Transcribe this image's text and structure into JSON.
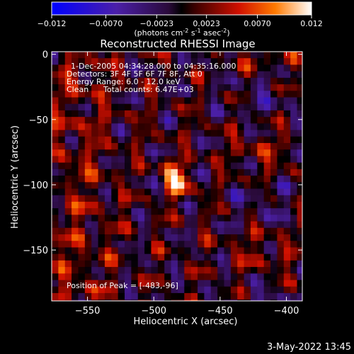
{
  "colorbar": {
    "ticks": [
      "-0.012",
      "-0.0070",
      "-0.0023",
      "0.0023",
      "0.0070",
      "0.012"
    ],
    "tick_values": [
      -0.012,
      -0.007,
      -0.0023,
      0.0023,
      0.007,
      0.012
    ],
    "range": [
      -0.012,
      0.012
    ],
    "unit_parts": [
      "(photons cm",
      "-2",
      " s",
      "-1",
      " asec",
      "-2",
      ")"
    ]
  },
  "info": {
    "time": "1-Dec-2005 04:34:28.000 to 04:35:16.000",
    "detectors": "Detectors: 3F 4F 5F 6F 7F 8F, Att 0",
    "energy": "Energy Range: 6.0 - 12.0 keV",
    "clean": "Clean",
    "counts": "Total counts: 6.47E+03",
    "peak": "Position of Peak = [-483,-96]"
  },
  "footer": {
    "timestamp": "3-May-2022 13:45"
  },
  "chart_data": {
    "type": "heatmap",
    "title": "Reconstructed RHESSI Image",
    "xlabel": "Heliocentric X (arcsec)",
    "ylabel": "Heliocentric Y (arcsec)",
    "xlim": [
      -577,
      -388
    ],
    "ylim": [
      -189,
      2
    ],
    "xticks": [
      -550,
      -500,
      -450,
      -400
    ],
    "xtick_labels": [
      "−550",
      "−500",
      "−450",
      "−400"
    ],
    "yticks": [
      0,
      -50,
      -100,
      -150
    ],
    "ytick_labels": [
      "0",
      "−50",
      "−100",
      "−150"
    ],
    "peak": {
      "x": -483,
      "y": -96,
      "value": 0.012
    },
    "colormap_stops": [
      {
        "v": 0.0,
        "color": "#0000ff"
      },
      {
        "v": 0.25,
        "color": "#4b1fa8"
      },
      {
        "v": 0.45,
        "color": "#2a0a3a"
      },
      {
        "v": 0.5,
        "color": "#000000"
      },
      {
        "v": 0.55,
        "color": "#3a0000"
      },
      {
        "v": 0.72,
        "color": "#d01000"
      },
      {
        "v": 0.86,
        "color": "#ff7a00"
      },
      {
        "v": 1.0,
        "color": "#ffffff"
      }
    ]
  }
}
